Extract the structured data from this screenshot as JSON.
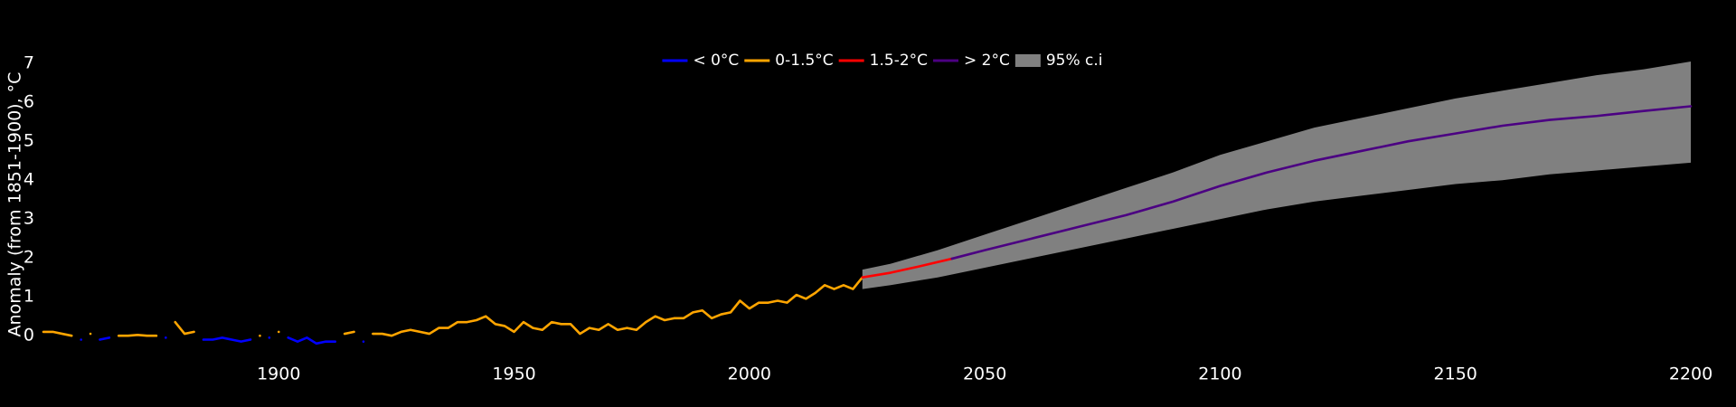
{
  "chart_data": {
    "type": "line",
    "y_label": "Anomaly (from 1851-1900), °C",
    "xlim": [
      1850,
      2200
    ],
    "ylim": [
      -0.6,
      7.4
    ],
    "xticks": [
      1900,
      1950,
      2000,
      2050,
      2100,
      2150,
      2200
    ],
    "yticks": [
      0,
      1,
      2,
      3,
      4,
      5,
      6,
      7
    ],
    "legend": "top",
    "series": [
      {
        "name": "< 0°C",
        "color": "#0000ff",
        "x": [
          1850,
          1852,
          1854,
          1856,
          1858,
          1860,
          1862,
          1864,
          1866,
          1868,
          1870,
          1872,
          1874,
          1876,
          1878,
          1880,
          1882,
          1884,
          1886,
          1888,
          1890,
          1892,
          1894,
          1896,
          1898,
          1900,
          1902,
          1904,
          1906,
          1908,
          1910,
          1912,
          1914,
          1916,
          1918,
          1920,
          1922,
          1924,
          1926,
          1928,
          1930,
          1932,
          1934,
          1936,
          1938,
          1940,
          1942,
          1944,
          1946,
          1948,
          1950,
          1952,
          1954,
          1956,
          1958,
          1960,
          1962,
          1964,
          1966,
          1968,
          1970,
          1972,
          1974,
          1976,
          1978,
          1980,
          1982,
          1984,
          1986,
          1988,
          1990,
          1992,
          1994,
          1996,
          1998,
          2000,
          2002,
          2004,
          2006,
          2008,
          2010,
          2012,
          2014,
          2016,
          2018,
          2020,
          2022,
          2024
        ],
        "values": [
          null,
          null,
          null,
          null,
          -0.1,
          null,
          -0.1,
          -0.05,
          null,
          null,
          null,
          null,
          null,
          -0.05,
          null,
          null,
          null,
          -0.1,
          -0.1,
          -0.05,
          -0.1,
          -0.15,
          -0.1,
          null,
          -0.05,
          null,
          -0.05,
          -0.15,
          -0.05,
          -0.2,
          -0.15,
          -0.15,
          null,
          null,
          -0.15,
          null,
          null,
          null,
          null,
          null,
          null,
          null,
          null,
          null,
          null,
          null,
          null,
          null,
          null,
          null,
          null,
          null,
          null,
          null,
          null,
          null,
          null,
          null,
          null,
          null,
          null,
          null,
          null,
          null,
          null,
          null,
          null,
          null,
          null,
          null,
          null,
          null,
          null,
          null,
          null,
          null,
          null,
          null,
          null,
          null,
          null,
          null,
          null,
          null,
          null,
          null,
          null,
          null
        ]
      },
      {
        "name": "0-1.5°C",
        "color": "#ffa500",
        "x": [
          1850,
          1852,
          1854,
          1856,
          1858,
          1860,
          1862,
          1864,
          1866,
          1868,
          1870,
          1872,
          1874,
          1876,
          1878,
          1880,
          1882,
          1884,
          1886,
          1888,
          1890,
          1892,
          1894,
          1896,
          1898,
          1900,
          1902,
          1904,
          1906,
          1908,
          1910,
          1912,
          1914,
          1916,
          1918,
          1920,
          1922,
          1924,
          1926,
          1928,
          1930,
          1932,
          1934,
          1936,
          1938,
          1940,
          1942,
          1944,
          1946,
          1948,
          1950,
          1952,
          1954,
          1956,
          1958,
          1960,
          1962,
          1964,
          1966,
          1968,
          1970,
          1972,
          1974,
          1976,
          1978,
          1980,
          1982,
          1984,
          1986,
          1988,
          1990,
          1992,
          1994,
          1996,
          1998,
          2000,
          2002,
          2004,
          2006,
          2008,
          2010,
          2012,
          2014,
          2016,
          2018,
          2020,
          2022,
          2024
        ],
        "values": [
          0.1,
          0.1,
          0.05,
          0.0,
          null,
          0.05,
          null,
          null,
          0.0,
          0.0,
          0.02,
          0.0,
          0.0,
          null,
          0.35,
          0.05,
          0.1,
          null,
          null,
          null,
          null,
          null,
          null,
          0.0,
          null,
          0.1,
          null,
          null,
          null,
          null,
          null,
          null,
          0.05,
          0.1,
          null,
          0.05,
          0.05,
          0.0,
          0.1,
          0.15,
          0.1,
          0.05,
          0.2,
          0.2,
          0.35,
          0.35,
          0.4,
          0.5,
          0.3,
          0.25,
          0.1,
          0.35,
          0.2,
          0.15,
          0.35,
          0.3,
          0.3,
          0.05,
          0.2,
          0.15,
          0.3,
          0.15,
          0.2,
          0.15,
          0.35,
          0.5,
          0.4,
          0.45,
          0.45,
          0.6,
          0.65,
          0.45,
          0.55,
          0.6,
          0.9,
          0.7,
          0.85,
          0.85,
          0.9,
          0.85,
          1.05,
          0.95,
          1.1,
          1.3,
          1.2,
          1.3,
          1.2,
          1.5
        ]
      },
      {
        "name": "1.5-2°C",
        "color": "#ff0000",
        "x": [
          2024,
          2030,
          2036,
          2043
        ],
        "values": [
          1.5,
          1.62,
          1.78,
          1.98
        ]
      },
      {
        "name": "> 2°C",
        "color": "#4b0082",
        "x": [
          2043,
          2050,
          2060,
          2070,
          2080,
          2090,
          2100,
          2110,
          2120,
          2130,
          2140,
          2150,
          2160,
          2170,
          2180,
          2190,
          2200
        ],
        "values": [
          1.98,
          2.2,
          2.5,
          2.8,
          3.1,
          3.45,
          3.85,
          4.2,
          4.5,
          4.75,
          5.0,
          5.2,
          5.4,
          5.55,
          5.65,
          5.78,
          5.9
        ]
      }
    ],
    "band": {
      "name": "95% c.i",
      "color": "#808080",
      "x": [
        2024,
        2030,
        2040,
        2050,
        2060,
        2070,
        2080,
        2090,
        2100,
        2110,
        2120,
        2130,
        2140,
        2150,
        2160,
        2170,
        2180,
        2190,
        2200
      ],
      "lower": [
        1.2,
        1.3,
        1.5,
        1.75,
        2.0,
        2.25,
        2.5,
        2.75,
        3.0,
        3.25,
        3.45,
        3.6,
        3.75,
        3.9,
        4.0,
        4.15,
        4.25,
        4.35,
        4.45
      ],
      "upper": [
        1.7,
        1.85,
        2.2,
        2.6,
        3.0,
        3.4,
        3.8,
        4.2,
        4.65,
        5.0,
        5.35,
        5.6,
        5.85,
        6.1,
        6.3,
        6.5,
        6.7,
        6.85,
        7.05
      ]
    }
  }
}
